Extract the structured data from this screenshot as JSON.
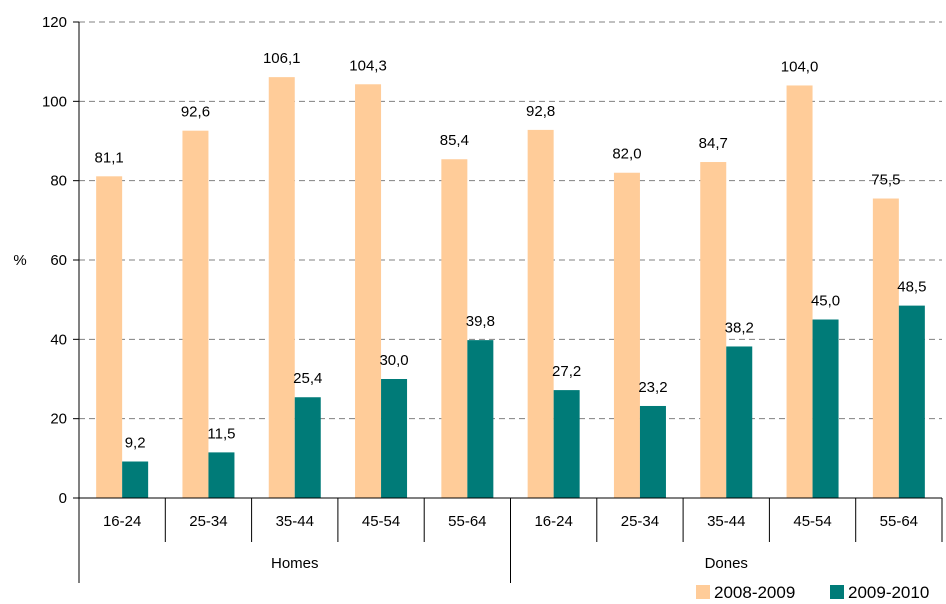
{
  "chart_data": {
    "type": "bar",
    "ylabel": "%",
    "ylim": [
      0,
      120
    ],
    "yticks": [
      0,
      20,
      40,
      60,
      80,
      100,
      120
    ],
    "grid": "horizontal dashed",
    "legend_position": "bottom-right",
    "categories": [
      "16-24",
      "25-34",
      "35-44",
      "45-54",
      "55-64",
      "16-24",
      "25-34",
      "35-44",
      "45-54",
      "55-64"
    ],
    "groups": [
      {
        "name": "Homes",
        "span": 5
      },
      {
        "name": "Dones",
        "span": 5
      }
    ],
    "series": [
      {
        "name": "2008-2009",
        "color": "#FFCC99",
        "values": [
          81.1,
          92.6,
          106.1,
          104.3,
          85.4,
          92.8,
          82.0,
          84.7,
          104.0,
          75.5
        ],
        "labels": [
          "81,1",
          "92,6",
          "106,1",
          "104,3",
          "85,4",
          "92,8",
          "82,0",
          "84,7",
          "104,0",
          "75,5"
        ]
      },
      {
        "name": "2009-2010",
        "color": "#007B78",
        "values": [
          9.2,
          11.5,
          25.4,
          30.0,
          39.8,
          27.2,
          23.2,
          38.2,
          45.0,
          48.5
        ],
        "labels": [
          "9,2",
          "11,5",
          "25,4",
          "30,0",
          "39,8",
          "27,2",
          "23,2",
          "38,2",
          "45,0",
          "48,5"
        ]
      }
    ]
  }
}
